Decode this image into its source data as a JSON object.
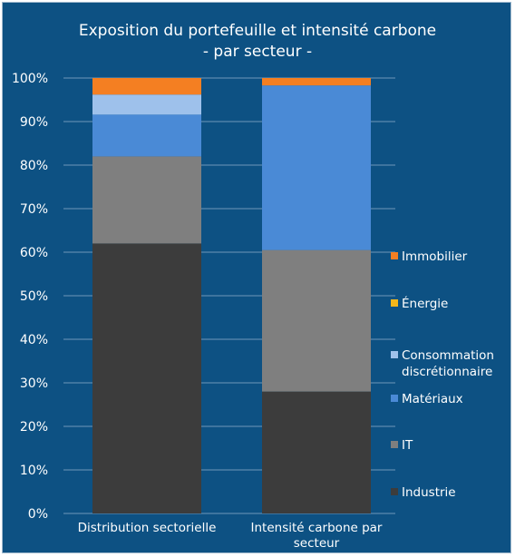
{
  "chart_data": {
    "type": "bar",
    "stacked": true,
    "title": "Exposition du portefeuille et intensité carbone",
    "subtitle": "- par secteur -",
    "categories": [
      [
        "Distribution sectorielle"
      ],
      [
        "Intensité carbone par",
        "secteur"
      ]
    ],
    "ylim": [
      0,
      100
    ],
    "y_ticks": [
      "0%",
      "10%",
      "20%",
      "30%",
      "40%",
      "50%",
      "60%",
      "70%",
      "80%",
      "90%",
      "100%"
    ],
    "grid": true,
    "legend_position": "right",
    "series": [
      {
        "name": "Industrie",
        "color": "#3c3c3c",
        "values": [
          62,
          28
        ]
      },
      {
        "name": "IT",
        "color": "#7f7f7f",
        "values": [
          20,
          32.5
        ]
      },
      {
        "name": "Matériaux",
        "color": "#4a8ad6",
        "values": [
          9.6,
          37.8
        ]
      },
      {
        "name": [
          "Consommation",
          "discrétionnaire"
        ],
        "color": "#9ec1eb",
        "values": [
          4.6,
          0
        ]
      },
      {
        "name": "Énergie",
        "color": "#f3b61b",
        "values": [
          0,
          0
        ]
      },
      {
        "name": "Immobilier",
        "color": "#f47f22",
        "values": [
          3.8,
          1.7
        ]
      }
    ]
  }
}
